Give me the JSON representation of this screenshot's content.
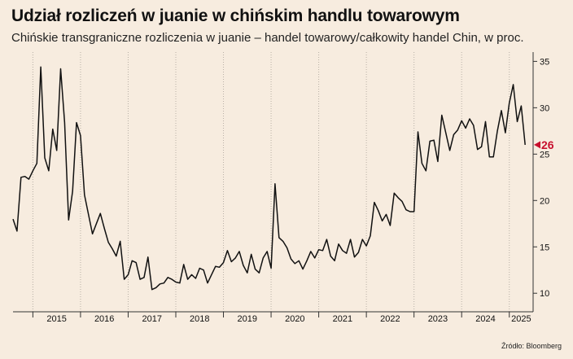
{
  "title": "Udział rozliczeń w juanie w chińskim handlu towarowym",
  "subtitle": "Chińskie transgraniczne rozliczenia w juanie – handel towarowy/całkowity handel Chin, w proc.",
  "source": "Źródło: Bloomberg",
  "colors": {
    "background": "#f7ecdf",
    "line": "#111111",
    "grid": "#b8b0a6",
    "highlight": "#c8102e"
  },
  "chart_data": {
    "type": "line",
    "title": "Udział rozliczeń w juanie w chińskim handlu towarowym",
    "xlabel": "",
    "ylabel": "",
    "ylim": [
      8,
      36
    ],
    "yticks": [
      10,
      15,
      20,
      25,
      30,
      35
    ],
    "y_axis_position": "right",
    "xlim": [
      "2014-08",
      "2025-07"
    ],
    "x_tick_labels": [
      "2015",
      "2016",
      "2017",
      "2018",
      "2019",
      "2020",
      "2021",
      "2022",
      "2023",
      "2024",
      "2025"
    ],
    "grid": "vertical dotted year separators",
    "last_value_label": "26",
    "series": [
      {
        "values": [
          [
            "2014-08",
            18.0
          ],
          [
            "2014-09",
            16.7
          ],
          [
            "2014-10",
            22.5
          ],
          [
            "2014-11",
            22.6
          ],
          [
            "2014-12",
            22.3
          ],
          [
            "2015-01",
            23.2
          ],
          [
            "2015-02",
            24.0
          ],
          [
            "2015-03",
            34.4
          ],
          [
            "2015-04",
            24.6
          ],
          [
            "2015-05",
            23.2
          ],
          [
            "2015-06",
            27.7
          ],
          [
            "2015-07",
            25.4
          ],
          [
            "2015-08",
            34.2
          ],
          [
            "2015-09",
            28.4
          ],
          [
            "2015-10",
            17.9
          ],
          [
            "2015-11",
            21.0
          ],
          [
            "2015-12",
            28.4
          ],
          [
            "2016-01",
            27.0
          ],
          [
            "2016-02",
            20.6
          ],
          [
            "2016-03",
            18.5
          ],
          [
            "2016-04",
            16.4
          ],
          [
            "2016-05",
            17.5
          ],
          [
            "2016-06",
            18.6
          ],
          [
            "2016-07",
            17.0
          ],
          [
            "2016-08",
            15.5
          ],
          [
            "2016-09",
            14.8
          ],
          [
            "2016-10",
            14.0
          ],
          [
            "2016-11",
            15.6
          ],
          [
            "2016-12",
            11.5
          ],
          [
            "2017-01",
            12.0
          ],
          [
            "2017-02",
            13.5
          ],
          [
            "2017-03",
            13.3
          ],
          [
            "2017-04",
            11.5
          ],
          [
            "2017-05",
            11.7
          ],
          [
            "2017-06",
            13.9
          ],
          [
            "2017-07",
            10.4
          ],
          [
            "2017-08",
            10.6
          ],
          [
            "2017-09",
            11.0
          ],
          [
            "2017-10",
            11.1
          ],
          [
            "2017-11",
            11.7
          ],
          [
            "2017-12",
            11.5
          ],
          [
            "2018-01",
            11.2
          ],
          [
            "2018-02",
            11.1
          ],
          [
            "2018-03",
            13.1
          ],
          [
            "2018-04",
            11.5
          ],
          [
            "2018-05",
            12.0
          ],
          [
            "2018-06",
            11.6
          ],
          [
            "2018-07",
            12.7
          ],
          [
            "2018-08",
            12.5
          ],
          [
            "2018-09",
            11.1
          ],
          [
            "2018-10",
            12.0
          ],
          [
            "2018-11",
            12.9
          ],
          [
            "2018-12",
            12.8
          ],
          [
            "2019-01",
            13.3
          ],
          [
            "2019-02",
            14.6
          ],
          [
            "2019-03",
            13.4
          ],
          [
            "2019-04",
            13.8
          ],
          [
            "2019-05",
            14.5
          ],
          [
            "2019-06",
            13.0
          ],
          [
            "2019-07",
            12.2
          ],
          [
            "2019-08",
            14.2
          ],
          [
            "2019-09",
            12.6
          ],
          [
            "2019-10",
            12.2
          ],
          [
            "2019-11",
            13.8
          ],
          [
            "2019-12",
            14.5
          ],
          [
            "2020-01",
            12.7
          ],
          [
            "2020-02",
            21.8
          ],
          [
            "2020-03",
            16.0
          ],
          [
            "2020-04",
            15.6
          ],
          [
            "2020-05",
            14.9
          ],
          [
            "2020-06",
            13.7
          ],
          [
            "2020-07",
            13.2
          ],
          [
            "2020-08",
            13.5
          ],
          [
            "2020-09",
            12.6
          ],
          [
            "2020-10",
            13.5
          ],
          [
            "2020-11",
            14.5
          ],
          [
            "2020-12",
            13.8
          ],
          [
            "2021-01",
            14.7
          ],
          [
            "2021-02",
            14.6
          ],
          [
            "2021-03",
            15.8
          ],
          [
            "2021-04",
            14.0
          ],
          [
            "2021-05",
            13.5
          ],
          [
            "2021-06",
            15.3
          ],
          [
            "2021-07",
            14.6
          ],
          [
            "2021-08",
            14.3
          ],
          [
            "2021-09",
            15.8
          ],
          [
            "2021-10",
            13.9
          ],
          [
            "2021-11",
            14.4
          ],
          [
            "2021-12",
            15.8
          ],
          [
            "2022-01",
            15.1
          ],
          [
            "2022-02",
            16.2
          ],
          [
            "2022-03",
            19.8
          ],
          [
            "2022-04",
            18.9
          ],
          [
            "2022-05",
            17.8
          ],
          [
            "2022-06",
            18.5
          ],
          [
            "2022-07",
            17.3
          ],
          [
            "2022-08",
            20.8
          ],
          [
            "2022-09",
            20.3
          ],
          [
            "2022-10",
            19.9
          ],
          [
            "2022-11",
            19.0
          ],
          [
            "2022-12",
            18.8
          ],
          [
            "2023-01",
            18.8
          ],
          [
            "2023-02",
            27.4
          ],
          [
            "2023-03",
            24.0
          ],
          [
            "2023-04",
            23.2
          ],
          [
            "2023-05",
            26.4
          ],
          [
            "2023-06",
            26.5
          ],
          [
            "2023-07",
            24.2
          ],
          [
            "2023-08",
            29.2
          ],
          [
            "2023-09",
            27.3
          ],
          [
            "2023-10",
            25.4
          ],
          [
            "2023-11",
            27.1
          ],
          [
            "2023-12",
            27.6
          ],
          [
            "2024-01",
            28.6
          ],
          [
            "2024-02",
            27.8
          ],
          [
            "2024-03",
            28.8
          ],
          [
            "2024-04",
            28.1
          ],
          [
            "2024-05",
            25.5
          ],
          [
            "2024-06",
            25.8
          ],
          [
            "2024-07",
            28.5
          ],
          [
            "2024-08",
            24.7
          ],
          [
            "2024-09",
            24.7
          ],
          [
            "2024-10",
            27.5
          ],
          [
            "2024-11",
            29.7
          ],
          [
            "2024-12",
            27.3
          ],
          [
            "2025-01",
            30.5
          ],
          [
            "2025-02",
            32.5
          ],
          [
            "2025-03",
            28.5
          ],
          [
            "2025-04",
            30.2
          ],
          [
            "2025-05",
            26.0
          ]
        ]
      }
    ]
  }
}
